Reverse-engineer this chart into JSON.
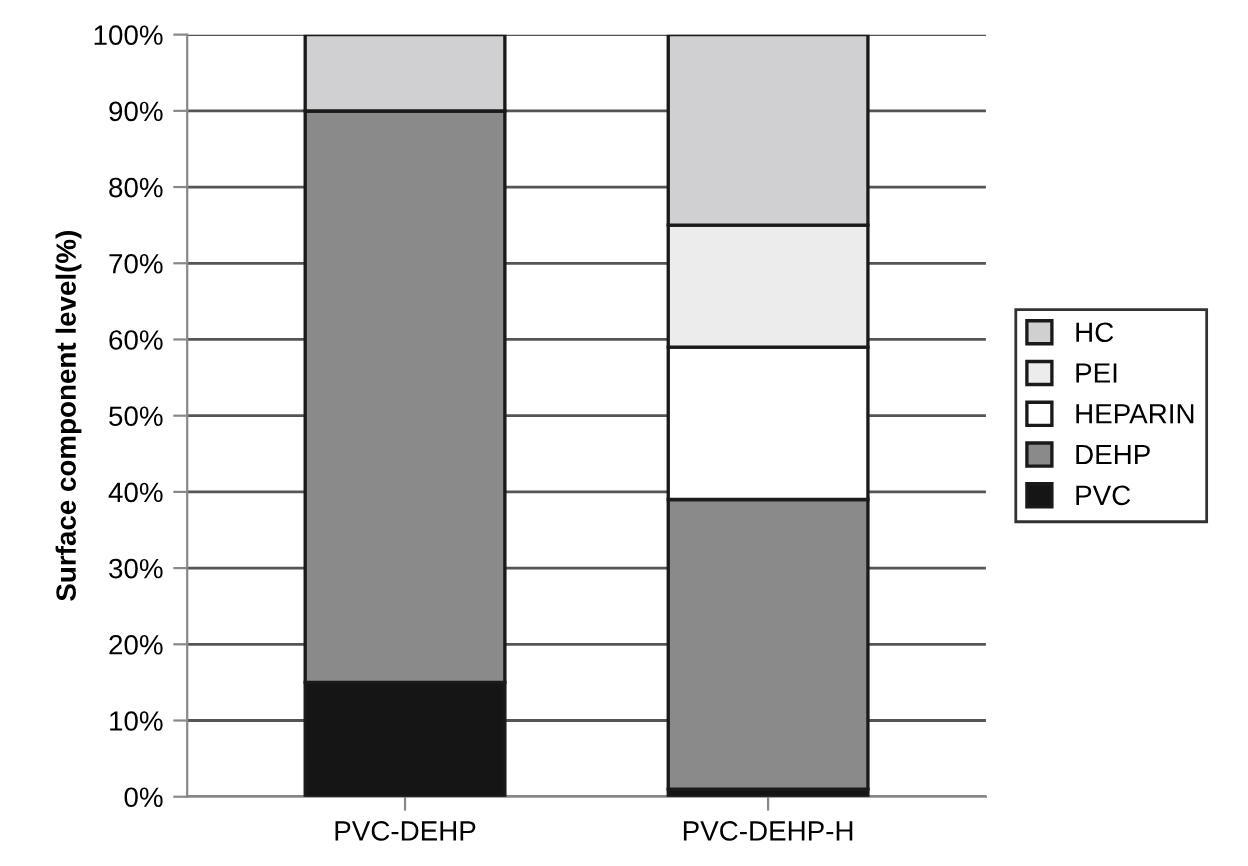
{
  "chart_data": {
    "type": "bar",
    "stacked": true,
    "ylabel": "Surface component level(%)",
    "categories": [
      "PVC-DEHP",
      "PVC-DEHP-H"
    ],
    "series": [
      {
        "name": "PVC",
        "color": "#151515",
        "values": [
          15,
          1
        ]
      },
      {
        "name": "DEHP",
        "color": "#8a8a8b",
        "values": [
          75,
          38
        ]
      },
      {
        "name": "HEPARIN",
        "color": "#ffffff",
        "values": [
          0,
          20
        ]
      },
      {
        "name": "PEI",
        "color": "#ececec",
        "values": [
          0,
          16
        ]
      },
      {
        "name": "HC",
        "color": "#d0d0d2",
        "values": [
          10,
          25
        ]
      }
    ],
    "ylim": [
      0,
      100
    ],
    "yticks": [
      {
        "value": 0,
        "label": "0%"
      },
      {
        "value": 10,
        "label": "10%"
      },
      {
        "value": 20,
        "label": "20%"
      },
      {
        "value": 30,
        "label": "30%"
      },
      {
        "value": 40,
        "label": "40%"
      },
      {
        "value": 50,
        "label": "50%"
      },
      {
        "value": 60,
        "label": "60%"
      },
      {
        "value": 70,
        "label": "70%"
      },
      {
        "value": 80,
        "label": "80%"
      },
      {
        "value": 90,
        "label": "90%"
      },
      {
        "value": 100,
        "label": "100%"
      }
    ],
    "grid": "y",
    "legend": "right"
  }
}
